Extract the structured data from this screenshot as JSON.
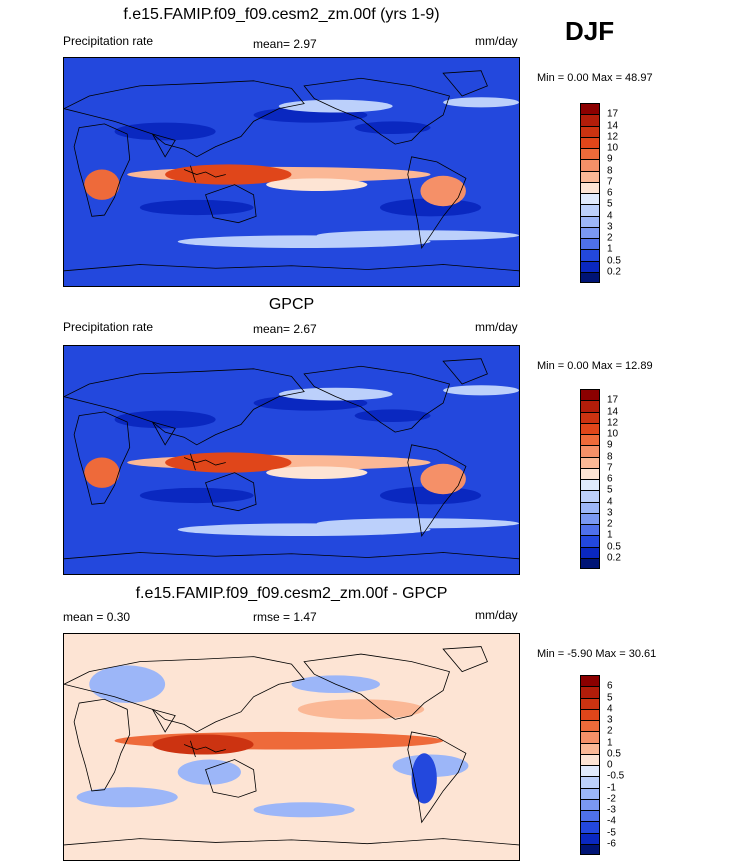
{
  "season": "DJF",
  "panels": [
    {
      "title": "f.e15.FAMIP.f09_f09.cesm2_zm.00f (yrs 1-9)",
      "left_label": "Precipitation rate",
      "center_label": "mean=   2.97",
      "right_label": "mm/day",
      "minmax": "Min =   0.00 Max =  48.97",
      "kind": "precip"
    },
    {
      "title": "GPCP",
      "left_label": "Precipitation rate",
      "center_label": "mean=   2.67",
      "right_label": "mm/day",
      "minmax": "Min =   0.00 Max =  12.89",
      "kind": "precip"
    },
    {
      "title": "f.e15.FAMIP.f09_f09.cesm2_zm.00f - GPCP",
      "left_label": "mean =   0.30",
      "center_label": "rmse =   1.47",
      "right_label": "mm/day",
      "minmax": "Min =  -5.90 Max =  30.61",
      "kind": "diff"
    }
  ],
  "colorbars": {
    "precip": {
      "labels": [
        "17",
        "14",
        "12",
        "10",
        "9",
        "8",
        "7",
        "6",
        "5",
        "4",
        "3",
        "2",
        "1",
        "0.5",
        "0.2"
      ],
      "colors": [
        "#8b0000",
        "#b21d0a",
        "#cc3311",
        "#e0461a",
        "#ee6a3a",
        "#f59068",
        "#fbb896",
        "#fde4d4",
        "#e0eafc",
        "#bcd0fb",
        "#9cb6f8",
        "#7a98f2",
        "#4f70ea",
        "#2348dd",
        "#0a28c0",
        "#001475"
      ]
    },
    "diff": {
      "labels": [
        "6",
        "5",
        "4",
        "3",
        "2",
        "1",
        "0.5",
        "0",
        "-0.5",
        "-1",
        "-2",
        "-3",
        "-4",
        "-5",
        "-6"
      ],
      "colors": [
        "#8b0000",
        "#b21d0a",
        "#cc3311",
        "#e0461a",
        "#ee6a3a",
        "#f59068",
        "#fbb896",
        "#fde4d4",
        "#e0eafc",
        "#bcd0fb",
        "#9cb6f8",
        "#7a98f2",
        "#4f70ea",
        "#2348dd",
        "#0a28c0",
        "#001475"
      ]
    }
  }
}
